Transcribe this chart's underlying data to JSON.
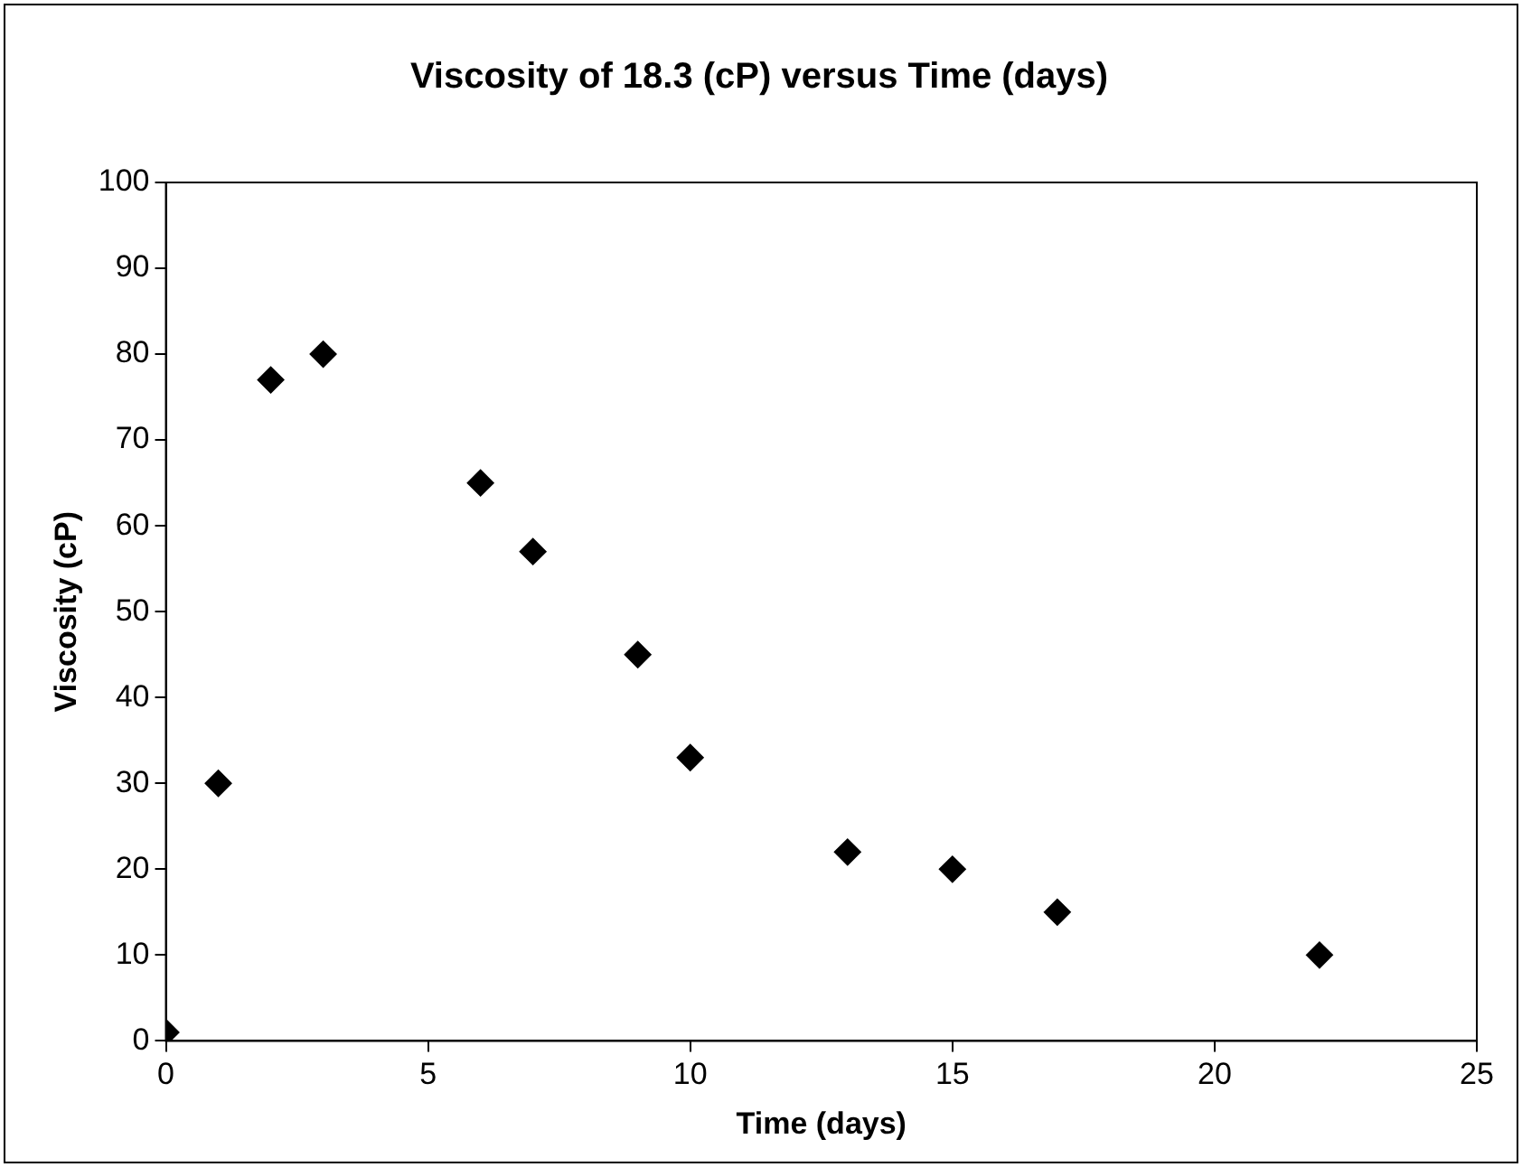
{
  "chart_data": {
    "type": "scatter",
    "title": "Viscosity of 18.3 (cP) versus Time (days)",
    "xlabel": "Time (days)",
    "ylabel": "Viscosity (cP)",
    "series": [
      {
        "color": "#000000",
        "x": [
          0,
          1,
          2,
          3,
          6,
          7,
          9,
          10,
          13,
          15,
          17,
          22
        ],
        "values": [
          1,
          30,
          77,
          80,
          65,
          57,
          45,
          33,
          22,
          20,
          15,
          10
        ]
      }
    ],
    "xlim": [
      0,
      25
    ],
    "xticks": [
      0,
      5,
      10,
      15,
      20,
      25
    ],
    "ylim": [
      0,
      100
    ],
    "yticks": [
      0,
      10,
      20,
      30,
      40,
      50,
      60,
      70,
      80,
      90,
      100
    ],
    "grid": false,
    "legend": false,
    "marker": "diamond"
  }
}
